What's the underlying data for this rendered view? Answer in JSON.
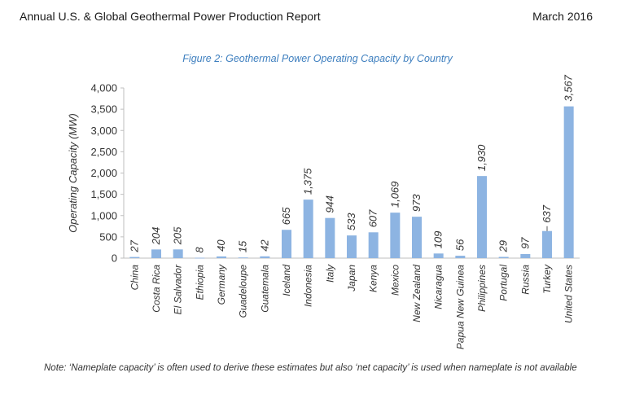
{
  "header": {
    "report_title": "Annual U.S. & Global Geothermal Power Production Report",
    "date": "March 2016"
  },
  "note": "Note:  ‘Nameplate capacity’ is often used to derive these estimates but also ‘net capacity’ is used when nameplate is not available",
  "colors": {
    "bar": "#8db4e2",
    "title": "#3e7fbf",
    "axis": "#bfbfbf"
  },
  "chart_data": {
    "type": "bar",
    "title": "Figure 2: Geothermal Power Operating Capacity by Country",
    "ylabel": "Operating Capacity (MW)",
    "xlabel": "",
    "ylim": [
      0,
      4000
    ],
    "yticks": [
      "0",
      "500",
      "1,000",
      "1,500",
      "2,000",
      "2,500",
      "3,000",
      "3,500",
      "4,000"
    ],
    "ytick_values": [
      0,
      500,
      1000,
      1500,
      2000,
      2500,
      3000,
      3500,
      4000
    ],
    "grid": false,
    "categories": [
      "China",
      "Costa Rica",
      "El Salvador",
      "Ethiopia",
      "Germany",
      "Guadeloupe",
      "Guatemala",
      "Iceland",
      "Indonesia",
      "Italy",
      "Japan",
      "Kenya",
      "Mexico",
      "New Zealand",
      "Nicaragua",
      "Papua New Guinea",
      "Philippines",
      "Portugal",
      "Russia",
      "Turkey",
      "United States"
    ],
    "values": [
      27,
      204,
      205,
      8,
      40,
      15,
      42,
      665,
      1375,
      944,
      533,
      607,
      1069,
      973,
      109,
      56,
      1930,
      29,
      97,
      637,
      3567
    ],
    "data_labels": [
      "27",
      "204",
      "205",
      "8",
      "40",
      "15",
      "42",
      "665",
      "1,375",
      "944",
      "533",
      "607",
      "1,069",
      "973",
      "109",
      "56",
      "1,930",
      "29",
      "97",
      "637",
      "3,567"
    ]
  }
}
